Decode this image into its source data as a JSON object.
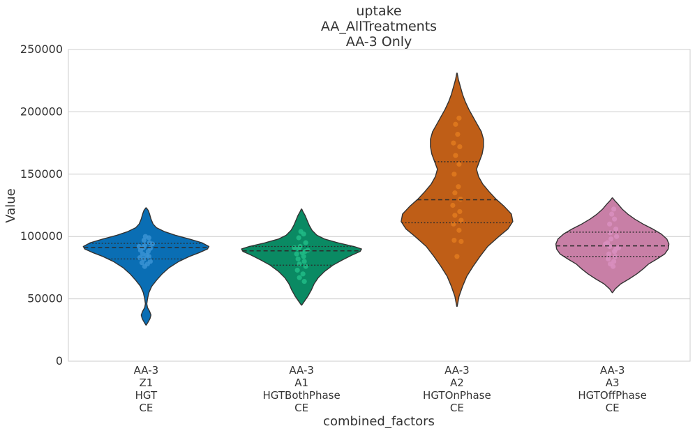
{
  "chart_data": {
    "type": "violin",
    "title_lines": [
      "uptake",
      "AA_AllTreatments",
      "AA-3 Only"
    ],
    "xlabel": "combined_factors",
    "ylabel": "Value",
    "ylim": [
      0,
      250000
    ],
    "yticks": [
      0,
      50000,
      100000,
      150000,
      200000,
      250000
    ],
    "ytick_labels": [
      "0",
      "50000",
      "100000",
      "150000",
      "200000",
      "250000"
    ],
    "grid": "horizontal",
    "categories": [
      {
        "label_lines": [
          "AA-3",
          "Z1",
          "HGT",
          "CE"
        ],
        "color": "#0a6eb4",
        "point_color": "#3a93d4",
        "median": 91000,
        "q1": 82000,
        "q3": 94500,
        "profile": [
          [
            29000,
            0.3
          ],
          [
            31000,
            2.5
          ],
          [
            34000,
            5.5
          ],
          [
            37000,
            7
          ],
          [
            40000,
            5
          ],
          [
            43000,
            2
          ],
          [
            46000,
            1
          ],
          [
            50000,
            2
          ],
          [
            55000,
            4
          ],
          [
            60000,
            8
          ],
          [
            65000,
            15
          ],
          [
            70000,
            23
          ],
          [
            75000,
            33
          ],
          [
            80000,
            47
          ],
          [
            84000,
            62
          ],
          [
            87000,
            76
          ],
          [
            90000,
            88
          ],
          [
            92000,
            90
          ],
          [
            95000,
            80
          ],
          [
            98000,
            62
          ],
          [
            101000,
            42
          ],
          [
            104000,
            26
          ],
          [
            107000,
            15
          ],
          [
            110000,
            10
          ],
          [
            114000,
            7
          ],
          [
            118000,
            5
          ],
          [
            121000,
            3
          ],
          [
            123000,
            0.3
          ]
        ],
        "points": [
          [
            91000,
            -4
          ],
          [
            90500,
            6
          ],
          [
            89000,
            -8
          ],
          [
            88000,
            3
          ],
          [
            93000,
            -2
          ],
          [
            95000,
            5
          ],
          [
            86000,
            -5
          ],
          [
            84000,
            4
          ],
          [
            82000,
            -3
          ],
          [
            80000,
            6
          ],
          [
            79000,
            -6
          ],
          [
            92000,
            -10
          ],
          [
            94000,
            9
          ],
          [
            97000,
            -3
          ],
          [
            99000,
            4
          ],
          [
            100000,
            -1
          ],
          [
            85000,
            1
          ],
          [
            83000,
            -9
          ],
          [
            78000,
            2
          ],
          [
            76000,
            -2
          ]
        ]
      },
      {
        "label_lines": [
          "AA-3",
          "A1",
          "HGTBothPhase",
          "CE"
        ],
        "color": "#0a8a63",
        "point_color": "#21bb86",
        "median": 88500,
        "q1": 77000,
        "q3": 92000,
        "profile": [
          [
            45000,
            0.3
          ],
          [
            48000,
            4
          ],
          [
            52000,
            9
          ],
          [
            57000,
            14
          ],
          [
            62000,
            18
          ],
          [
            67000,
            24
          ],
          [
            72000,
            33
          ],
          [
            77000,
            45
          ],
          [
            81000,
            58
          ],
          [
            85000,
            72
          ],
          [
            88000,
            84
          ],
          [
            90000,
            86
          ],
          [
            92000,
            75
          ],
          [
            95000,
            52
          ],
          [
            98000,
            33
          ],
          [
            101000,
            22
          ],
          [
            105000,
            15
          ],
          [
            109000,
            11
          ],
          [
            113000,
            8
          ],
          [
            117000,
            5
          ],
          [
            120000,
            2
          ],
          [
            122000,
            0.3
          ]
        ],
        "points": [
          [
            90000,
            -4
          ],
          [
            88000,
            5
          ],
          [
            86000,
            -7
          ],
          [
            84000,
            3
          ],
          [
            92000,
            -2
          ],
          [
            95000,
            6
          ],
          [
            82000,
            -5
          ],
          [
            80000,
            4
          ],
          [
            78000,
            -3
          ],
          [
            76000,
            6
          ],
          [
            73000,
            -6
          ],
          [
            70000,
            2
          ],
          [
            67000,
            -3
          ],
          [
            64000,
            4
          ],
          [
            99000,
            -4
          ],
          [
            102000,
            3
          ],
          [
            104000,
            -1
          ],
          [
            89000,
            9
          ],
          [
            91000,
            -10
          ],
          [
            87000,
            1
          ]
        ]
      },
      {
        "label_lines": [
          "AA-3",
          "A2",
          "HGTOnPhase",
          "CE"
        ],
        "color": "#bf5e17",
        "point_color": "#e07a1e",
        "median": 129500,
        "q1": 111000,
        "q3": 160000,
        "profile": [
          [
            44000,
            0.3
          ],
          [
            52000,
            3
          ],
          [
            60000,
            8
          ],
          [
            68000,
            14
          ],
          [
            76000,
            23
          ],
          [
            84000,
            33
          ],
          [
            92000,
            44
          ],
          [
            100000,
            60
          ],
          [
            106000,
            73
          ],
          [
            112000,
            80
          ],
          [
            118000,
            78
          ],
          [
            124000,
            68
          ],
          [
            130000,
            56
          ],
          [
            136000,
            46
          ],
          [
            142000,
            37
          ],
          [
            148000,
            31
          ],
          [
            154000,
            28
          ],
          [
            160000,
            32
          ],
          [
            166000,
            36
          ],
          [
            172000,
            38
          ],
          [
            178000,
            38
          ],
          [
            184000,
            35
          ],
          [
            190000,
            29
          ],
          [
            196000,
            23
          ],
          [
            202000,
            17
          ],
          [
            208000,
            12
          ],
          [
            214000,
            8
          ],
          [
            220000,
            5
          ],
          [
            226000,
            2
          ],
          [
            231000,
            0.3
          ]
        ],
        "points": [
          [
            97000,
            -4
          ],
          [
            96000,
            6
          ],
          [
            105000,
            3
          ],
          [
            110000,
            -5
          ],
          [
            113000,
            6
          ],
          [
            117000,
            -3
          ],
          [
            120000,
            4
          ],
          [
            125000,
            -6
          ],
          [
            130000,
            5
          ],
          [
            135000,
            -3
          ],
          [
            140000,
            2
          ],
          [
            150000,
            -4
          ],
          [
            158000,
            3
          ],
          [
            165000,
            -2
          ],
          [
            172000,
            4
          ],
          [
            175000,
            -5
          ],
          [
            182000,
            1
          ],
          [
            190000,
            -2
          ],
          [
            195000,
            3
          ],
          [
            84000,
            0
          ]
        ]
      },
      {
        "label_lines": [
          "AA-3",
          "A3",
          "HGTOffPhase",
          "CE"
        ],
        "color": "#c87fa6",
        "point_color": "#d98fbf",
        "median": 92500,
        "q1": 84000,
        "q3": 103500,
        "profile": [
          [
            55000,
            0.3
          ],
          [
            58000,
            4
          ],
          [
            62000,
            12
          ],
          [
            66000,
            24
          ],
          [
            70000,
            35
          ],
          [
            74000,
            44
          ],
          [
            78000,
            52
          ],
          [
            82000,
            64
          ],
          [
            86000,
            75
          ],
          [
            90000,
            80
          ],
          [
            94000,
            81
          ],
          [
            98000,
            78
          ],
          [
            102000,
            70
          ],
          [
            106000,
            58
          ],
          [
            110000,
            44
          ],
          [
            114000,
            32
          ],
          [
            118000,
            22
          ],
          [
            122000,
            14
          ],
          [
            126000,
            8
          ],
          [
            129000,
            3
          ],
          [
            131000,
            0.3
          ]
        ],
        "points": [
          [
            92000,
            -4
          ],
          [
            90000,
            5
          ],
          [
            95000,
            -7
          ],
          [
            88000,
            3
          ],
          [
            98000,
            -2
          ],
          [
            100000,
            6
          ],
          [
            86000,
            -5
          ],
          [
            84000,
            4
          ],
          [
            103000,
            -3
          ],
          [
            106000,
            5
          ],
          [
            110000,
            -4
          ],
          [
            114000,
            3
          ],
          [
            118000,
            -1
          ],
          [
            82000,
            -6
          ],
          [
            80000,
            2
          ],
          [
            78000,
            -3
          ],
          [
            76000,
            1
          ],
          [
            122000,
            2
          ],
          [
            91000,
            9
          ],
          [
            94000,
            -10
          ]
        ]
      }
    ]
  }
}
